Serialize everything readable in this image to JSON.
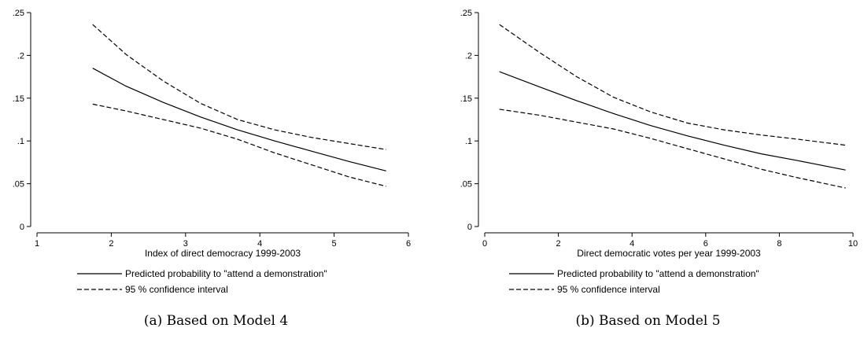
{
  "chart_data": [
    {
      "type": "line",
      "caption": "(a) Based on Model 4",
      "xlabel": "Index of direct democracy 1999-2003",
      "ylabel": "",
      "xlim": [
        1,
        6
      ],
      "ylim": [
        0,
        0.25
      ],
      "x_ticks": [
        1,
        2,
        3,
        4,
        5,
        6
      ],
      "y_ticks": [
        0,
        0.05,
        0.1,
        0.15,
        0.2,
        0.25
      ],
      "y_tick_labels": [
        "0",
        ".05",
        ".1",
        ".15",
        ".2",
        ".25"
      ],
      "grid": false,
      "legend_position": "bottom",
      "legend": [
        {
          "label": "Predicted probability to \"attend a demonstration\"",
          "style": "solid"
        },
        {
          "label": "95 % confidence interval",
          "style": "dashed"
        }
      ],
      "series": [
        {
          "name": "Predicted probability to \"attend a demonstration\"",
          "style": "solid",
          "x": [
            1.75,
            2.2,
            2.7,
            3.2,
            3.7,
            4.2,
            4.7,
            5.2,
            5.7
          ],
          "values": [
            0.185,
            0.164,
            0.145,
            0.128,
            0.113,
            0.1,
            0.088,
            0.076,
            0.065
          ]
        },
        {
          "name": "95 % confidence interval",
          "style": "dashed",
          "x": [
            1.75,
            2.2,
            2.7,
            3.2,
            3.7,
            4.2,
            4.7,
            5.2,
            5.7
          ],
          "values": [
            0.236,
            0.201,
            0.17,
            0.144,
            0.125,
            0.113,
            0.104,
            0.097,
            0.09
          ]
        },
        {
          "name": "",
          "style": "dashed",
          "x": [
            1.75,
            2.2,
            2.7,
            3.2,
            3.7,
            4.2,
            4.7,
            5.2,
            5.7
          ],
          "values": [
            0.143,
            0.135,
            0.125,
            0.115,
            0.102,
            0.086,
            0.072,
            0.058,
            0.047
          ]
        }
      ]
    },
    {
      "type": "line",
      "caption": "(b) Based on Model 5",
      "xlabel": "Direct democratic votes per year 1999-2003",
      "ylabel": "",
      "xlim": [
        0,
        10
      ],
      "ylim": [
        0,
        0.25
      ],
      "x_ticks": [
        0,
        2,
        4,
        6,
        8,
        10
      ],
      "y_ticks": [
        0,
        0.05,
        0.1,
        0.15,
        0.2,
        0.25
      ],
      "y_tick_labels": [
        "0",
        ".05",
        ".1",
        ".15",
        ".2",
        ".25"
      ],
      "grid": false,
      "legend_position": "bottom",
      "legend": [
        {
          "label": "Predicted probability to \"attend a demonstration\"",
          "style": "solid"
        },
        {
          "label": "95 % confidence interval",
          "style": "dashed"
        }
      ],
      "series": [
        {
          "name": "Predicted probability to \"attend a demonstration\"",
          "style": "solid",
          "x": [
            0.4,
            1.5,
            2.5,
            3.5,
            4.5,
            5.5,
            6.5,
            7.5,
            8.5,
            9.8
          ],
          "values": [
            0.181,
            0.163,
            0.147,
            0.132,
            0.118,
            0.106,
            0.095,
            0.085,
            0.077,
            0.066
          ]
        },
        {
          "name": "95 % confidence interval",
          "style": "dashed",
          "x": [
            0.4,
            1.5,
            2.5,
            3.5,
            4.5,
            5.5,
            6.5,
            7.5,
            8.5,
            9.8
          ],
          "values": [
            0.236,
            0.203,
            0.175,
            0.151,
            0.134,
            0.121,
            0.113,
            0.107,
            0.102,
            0.095
          ]
        },
        {
          "name": "",
          "style": "dashed",
          "x": [
            0.4,
            1.5,
            2.5,
            3.5,
            4.5,
            5.5,
            6.5,
            7.5,
            8.5,
            9.8
          ],
          "values": [
            0.137,
            0.13,
            0.122,
            0.114,
            0.103,
            0.091,
            0.079,
            0.067,
            0.057,
            0.045
          ]
        }
      ]
    }
  ]
}
